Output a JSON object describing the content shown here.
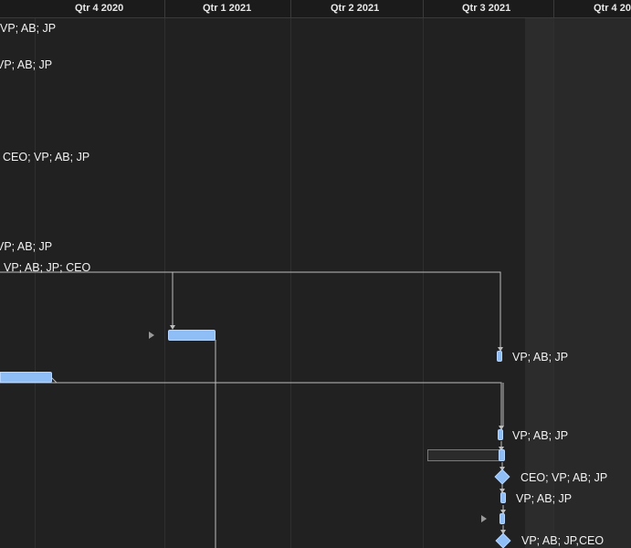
{
  "timeline": {
    "quarters": [
      {
        "label": "Qtr 4 2020"
      },
      {
        "label": "Qtr 1 2021"
      },
      {
        "label": "Qtr 2 2021"
      },
      {
        "label": "Qtr 3 2021"
      },
      {
        "label": "Qtr 4 2021"
      }
    ]
  },
  "rows": [
    {
      "resources": "VP; AB; JP"
    },
    {
      "resources": "VP; AB; JP"
    },
    {
      "resources": "CEO; VP; AB; JP"
    },
    {
      "resources": "VP; AB; JP"
    },
    {
      "resources": "VP; AB; JP; CEO"
    },
    {
      "resources": "VP; AB; JP"
    },
    {
      "resources": "VP; AB; JP"
    },
    {
      "resources": "CEO; VP; AB; JP"
    },
    {
      "resources": "VP; AB; JP"
    },
    {
      "resources": "VP; AB; JP,CEO"
    }
  ],
  "colors": {
    "background": "#212121",
    "header": "#1b1b1b",
    "task_bar": "#8fbdf5",
    "link_line": "#bdbdbd",
    "text": "#f2f2f2"
  }
}
